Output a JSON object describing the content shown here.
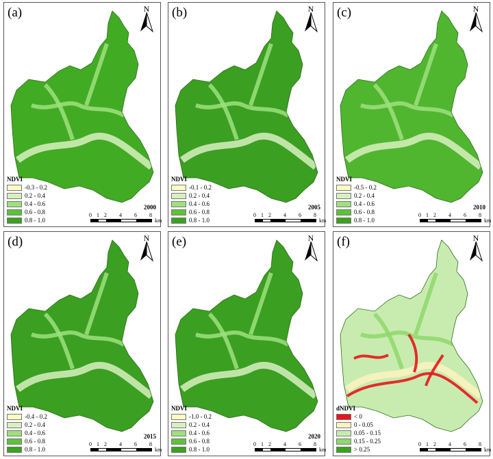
{
  "units": "km",
  "scale_labels": [
    "0",
    "1",
    "2",
    "4",
    "6",
    "8"
  ],
  "north_label": "N",
  "panels": [
    {
      "label": "(a)",
      "year": "2000",
      "legend_title": "NDVI",
      "legend": [
        "-0.3 - 0.2",
        "0.2 - 0.4",
        "0.4 - 0.6",
        "0.6 - 0.8",
        "0.8 - 1.0"
      ],
      "colors": [
        "#fdfbc4",
        "#d8f0c0",
        "#9ee07c",
        "#5cc23a",
        "#3aa21e"
      ],
      "base": "#42ab24"
    },
    {
      "label": "(b)",
      "year": "2005",
      "legend_title": "NDVI",
      "legend": [
        "-0.1 - 0.2",
        "0.2 - 0.4",
        "0.4 - 0.6",
        "0.6 - 0.8",
        "0.8 - 1.0"
      ],
      "colors": [
        "#fdfbc4",
        "#d8f0c0",
        "#9ee07c",
        "#5cc23a",
        "#3aa21e"
      ],
      "base": "#3b9f22"
    },
    {
      "label": "(c)",
      "year": "2010",
      "legend_title": "NDVI",
      "legend": [
        "-0.5 - 0.2",
        "0.2 - 0.4",
        "0.4 - 0.6",
        "0.6 - 0.8",
        "0.8 - 1.0"
      ],
      "colors": [
        "#fdfbc4",
        "#d8f0c0",
        "#9ee07c",
        "#5cc23a",
        "#3aa21e"
      ],
      "base": "#50b630"
    },
    {
      "label": "(d)",
      "year": "2015",
      "legend_title": "NDVI",
      "legend": [
        "-0.4 - 0.2",
        "0.2 - 0.4",
        "0.4 - 0.6",
        "0.6 - 0.8",
        "0.8 - 1.0"
      ],
      "colors": [
        "#fdfbc4",
        "#d8f0c0",
        "#9ee07c",
        "#5cc23a",
        "#3aa21e"
      ],
      "base": "#3b9f22"
    },
    {
      "label": "(e)",
      "year": "2020",
      "legend_title": "NDVI",
      "legend": [
        "-1.0 - 0.2",
        "0.2 - 0.4",
        "0.4 - 0.6",
        "0.6 - 0.8",
        "0.8 - 1.0"
      ],
      "colors": [
        "#fdfbc4",
        "#d8f0c0",
        "#9ee07c",
        "#5cc23a",
        "#3aa21e"
      ],
      "base": "#3b9f22"
    },
    {
      "label": "(f)",
      "year": "",
      "legend_title": "dNDVI",
      "legend": [
        "< 0",
        "0 - 0.05",
        "0.05 - 0.15",
        "0.15 - 0.25",
        "> 0.25"
      ],
      "colors": [
        "#e8161b",
        "#fdf3c0",
        "#c8ecb0",
        "#8fd86c",
        "#3aa21e"
      ],
      "base": "#c8ecb0"
    }
  ]
}
